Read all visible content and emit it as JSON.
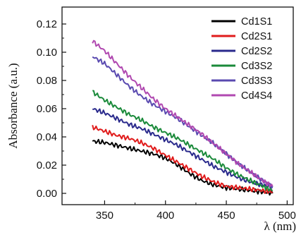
{
  "chart_data": {
    "type": "line",
    "xlabel": "λ (nm)",
    "ylabel": "Absorbance (a.u.)",
    "xlim": [
      315,
      505
    ],
    "ylim": [
      -0.008,
      0.132
    ],
    "xticks": [
      350,
      400,
      450,
      500
    ],
    "yticks": [
      0.0,
      0.02,
      0.04,
      0.06,
      0.08,
      0.1,
      0.12
    ],
    "ytick_labels": [
      "0.00",
      "0.02",
      "0.04",
      "0.06",
      "0.08",
      "0.10",
      "0.12"
    ],
    "grid": false,
    "legend_position": "top-right",
    "series": [
      {
        "name": "Cd1S1",
        "color": "#000000",
        "x": [
          340,
          350,
          360,
          370,
          380,
          390,
          400,
          410,
          420,
          430,
          440,
          450,
          460,
          470,
          480,
          488
        ],
        "y": [
          0.037,
          0.036,
          0.034,
          0.032,
          0.03,
          0.028,
          0.025,
          0.02,
          0.014,
          0.009,
          0.006,
          0.004,
          0.003,
          0.002,
          0.001,
          0.0
        ]
      },
      {
        "name": "Cd2S1",
        "color": "#e01b1b",
        "x": [
          340,
          350,
          360,
          370,
          380,
          390,
          400,
          410,
          420,
          430,
          440,
          450,
          460,
          470,
          480,
          488
        ],
        "y": [
          0.047,
          0.044,
          0.041,
          0.039,
          0.036,
          0.032,
          0.027,
          0.022,
          0.017,
          0.012,
          0.008,
          0.005,
          0.004,
          0.003,
          0.002,
          0.001
        ]
      },
      {
        "name": "Cd2S2",
        "color": "#2a2a8c",
        "x": [
          340,
          350,
          360,
          370,
          380,
          390,
          400,
          410,
          420,
          430,
          440,
          450,
          460,
          470,
          480,
          488
        ],
        "y": [
          0.06,
          0.057,
          0.053,
          0.049,
          0.046,
          0.042,
          0.038,
          0.034,
          0.029,
          0.024,
          0.019,
          0.015,
          0.011,
          0.008,
          0.006,
          0.004
        ]
      },
      {
        "name": "Cd3S2",
        "color": "#1a8a3a",
        "x": [
          340,
          350,
          360,
          370,
          380,
          390,
          400,
          410,
          420,
          430,
          440,
          450,
          460,
          470,
          480,
          488
        ],
        "y": [
          0.072,
          0.066,
          0.061,
          0.056,
          0.052,
          0.047,
          0.043,
          0.039,
          0.034,
          0.029,
          0.024,
          0.018,
          0.013,
          0.009,
          0.005,
          0.002
        ]
      },
      {
        "name": "Cd3S3",
        "color": "#5a4ab0",
        "x": [
          340,
          350,
          360,
          370,
          380,
          390,
          400,
          410,
          420,
          430,
          440,
          450,
          460,
          470,
          480,
          488
        ],
        "y": [
          0.097,
          0.092,
          0.084,
          0.076,
          0.069,
          0.063,
          0.058,
          0.053,
          0.047,
          0.041,
          0.035,
          0.028,
          0.021,
          0.015,
          0.009,
          0.005
        ]
      },
      {
        "name": "Cd4S4",
        "color": "#b048b0",
        "x": [
          340,
          350,
          360,
          370,
          380,
          390,
          400,
          410,
          420,
          430,
          440,
          450,
          460,
          470,
          480,
          488
        ],
        "y": [
          0.108,
          0.101,
          0.092,
          0.083,
          0.075,
          0.067,
          0.06,
          0.054,
          0.048,
          0.042,
          0.035,
          0.028,
          0.021,
          0.015,
          0.009,
          0.005
        ]
      }
    ]
  }
}
